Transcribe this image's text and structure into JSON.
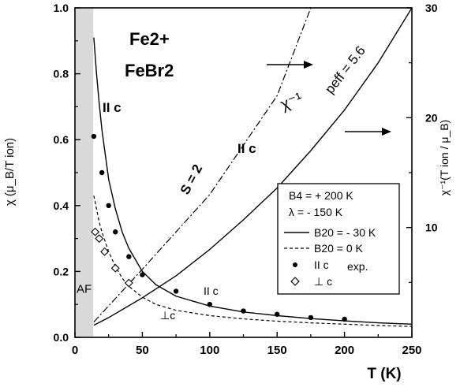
{
  "chart_data": {
    "type": "line",
    "title": "",
    "xlabel": "T (K)",
    "ylabel_left": "χ (μ_B/T ion)",
    "ylabel_right": "χ⁻¹(T ion / μ_B)",
    "xlim": [
      0,
      250
    ],
    "ylim_left": [
      0.0,
      1.0
    ],
    "ylim_right": [
      0,
      30
    ],
    "x_ticks": [
      "0",
      "50",
      "100",
      "150",
      "200",
      "250"
    ],
    "y_ticks_left": [
      "0.0",
      "0.2",
      "0.4",
      "0.6",
      "0.8",
      "1.0"
    ],
    "y_ticks_right": [
      "10",
      "20",
      "30"
    ],
    "af_region": {
      "label": "AF",
      "x_range": [
        0,
        13
      ]
    },
    "annotations": {
      "ion": "Fe2+",
      "compound": "FeBr2",
      "par_c_top": "II c",
      "s_equals": "S = 2",
      "chi_inv": "χ⁻¹",
      "peff_label": "peff = 5.6",
      "par_c_inverse": "II c",
      "par_c_curve": "II c",
      "perp_c_curve": "⊥c"
    },
    "legend": {
      "placement": "center-right",
      "params": [
        "B4 = + 200 K",
        "λ = - 150 K"
      ],
      "entries": [
        {
          "style": "solid",
          "label": "B20 = - 30 K"
        },
        {
          "style": "dashed",
          "label": "B20 = 0 K"
        },
        {
          "style": "dot",
          "label": "II c",
          "suffix": "exp."
        },
        {
          "style": "diamond",
          "label": "⊥ c"
        }
      ]
    },
    "series": [
      {
        "style": "solid",
        "axis": "left",
        "x": [
          14,
          16,
          18,
          20,
          25,
          30,
          35,
          40,
          50,
          60,
          75,
          100,
          125,
          150,
          175,
          200,
          225,
          250
        ],
        "y": [
          0.91,
          0.8,
          0.71,
          0.63,
          0.48,
          0.39,
          0.32,
          0.27,
          0.2,
          0.16,
          0.125,
          0.095,
          0.077,
          0.066,
          0.057,
          0.05,
          0.044,
          0.04
        ]
      },
      {
        "style": "dashed",
        "axis": "left",
        "x": [
          14,
          16,
          18,
          20,
          25,
          30,
          35,
          40,
          50,
          60,
          75,
          100,
          125,
          150,
          175,
          200,
          225,
          250
        ],
        "y": [
          0.43,
          0.39,
          0.35,
          0.32,
          0.26,
          0.215,
          0.18,
          0.155,
          0.122,
          0.1,
          0.082,
          0.066,
          0.056,
          0.049,
          0.044,
          0.04,
          0.036,
          0.033
        ]
      },
      {
        "style": "solid",
        "axis": "right",
        "x": [
          14,
          25,
          50,
          75,
          100,
          125,
          150,
          175,
          200,
          225,
          250
        ],
        "y": [
          1.1,
          1.8,
          3.6,
          5.6,
          8.0,
          10.7,
          13.6,
          17.0,
          20.7,
          25.0,
          30.0
        ]
      },
      {
        "style": "dashdot",
        "axis": "right",
        "x": [
          14,
          50,
          100,
          150,
          175
        ],
        "y": [
          1.4,
          6.2,
          13.0,
          22.0,
          30.0
        ]
      },
      {
        "style": "dot",
        "axis": "left",
        "x": [
          14,
          20,
          25,
          30,
          40,
          50,
          75,
          100,
          125,
          150,
          175,
          200
        ],
        "y": [
          0.61,
          0.5,
          0.4,
          0.32,
          0.245,
          0.19,
          0.14,
          0.1,
          0.08,
          0.07,
          0.06,
          0.055
        ]
      },
      {
        "style": "diamond",
        "axis": "left",
        "x": [
          15,
          18,
          22,
          30,
          40
        ],
        "y": [
          0.32,
          0.3,
          0.26,
          0.21,
          0.165
        ]
      }
    ]
  }
}
